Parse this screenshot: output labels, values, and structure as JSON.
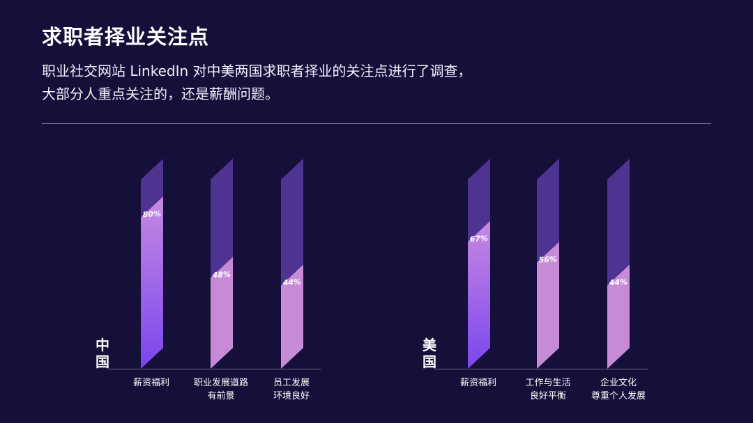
{
  "header": {
    "title": "求职者择业关注点",
    "subtitle_line1": "职业社交网站 LinkedIn 对中美两国求职者择业的关注点进行了调查，",
    "subtitle_line2": "大部分人重点关注的，还是薪酬问题。"
  },
  "colors": {
    "background": "#15103a",
    "bar_track": "#4e3490",
    "fill_primary_top": "#c68ae0",
    "fill_primary_bottom": "#7b45ee",
    "fill_secondary": "#c68ad6",
    "axis_line": "#6a6390"
  },
  "chart_data": [
    {
      "type": "bar",
      "group": "中国",
      "group_chars": [
        "中",
        "国"
      ],
      "categories": [
        "薪资福利",
        "职业发展道路有前景",
        "员工发展环境良好"
      ],
      "category_lines": [
        [
          "薪资福利"
        ],
        [
          "职业发展道路",
          "有前景"
        ],
        [
          "员工发展",
          "环境良好"
        ]
      ],
      "values": [
        80,
        48,
        44
      ],
      "value_labels": [
        "80%",
        "48%",
        "44%"
      ],
      "ylim": [
        0,
        100
      ]
    },
    {
      "type": "bar",
      "group": "美国",
      "group_chars": [
        "美",
        "国"
      ],
      "categories": [
        "薪资福利",
        "工作与生活良好平衡",
        "企业文化尊重个人发展"
      ],
      "category_lines": [
        [
          "薪资福利"
        ],
        [
          "工作与生活",
          "良好平衡"
        ],
        [
          "企业文化",
          "尊重个人发展"
        ]
      ],
      "values": [
        67,
        56,
        44
      ],
      "value_labels": [
        "67%",
        "56%",
        "44%"
      ],
      "ylim": [
        0,
        100
      ]
    }
  ]
}
